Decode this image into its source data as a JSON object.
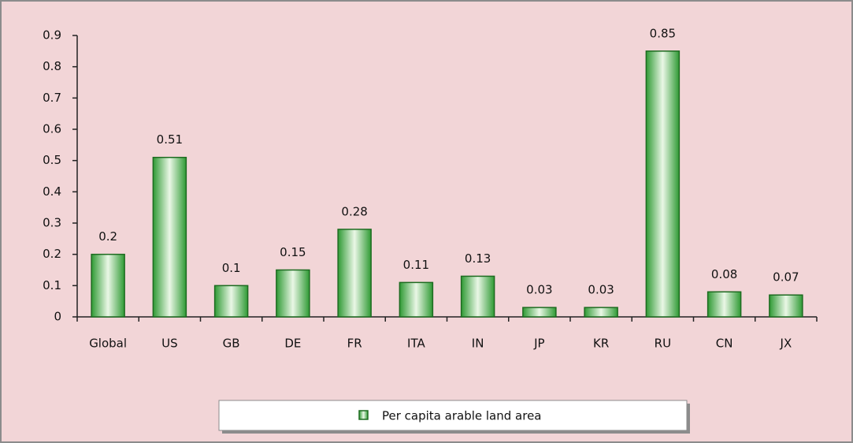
{
  "chart_data": {
    "type": "bar",
    "categories": [
      "Global",
      "US",
      "GB",
      "DE",
      "FR",
      "ITA",
      "IN",
      "JP",
      "KR",
      "RU",
      "CN",
      "JX"
    ],
    "series": [
      {
        "name": "Per capita arable land area",
        "color": "#2f9a34",
        "values": [
          0.2,
          0.51,
          0.1,
          0.15,
          0.28,
          0.11,
          0.13,
          0.03,
          0.03,
          0.85,
          0.08,
          0.07
        ]
      }
    ],
    "ylim": [
      0,
      0.9
    ],
    "yticks": [
      0,
      0.1,
      0.2,
      0.3,
      0.4,
      0.5,
      0.6,
      0.7,
      0.8,
      0.9
    ],
    "grid": false,
    "legend": "bottom"
  }
}
